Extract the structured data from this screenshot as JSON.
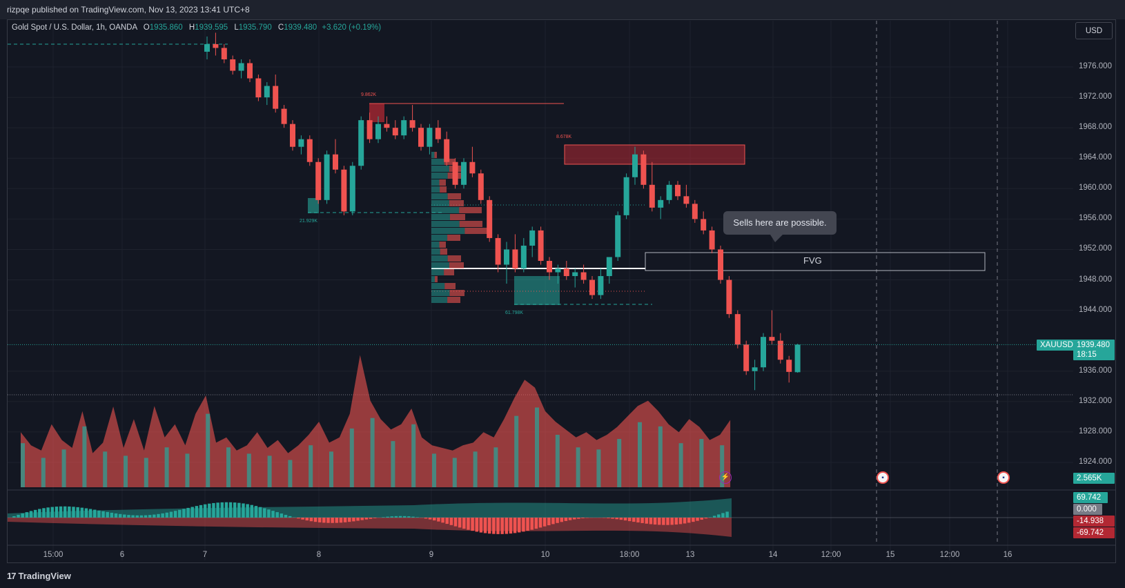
{
  "header": {
    "publish_line": "rizpqe published on TradingView.com, Nov 13, 2023 13:41 UTC+8"
  },
  "legend": {
    "symbol": "Gold Spot / U.S. Dollar, 1h, OANDA",
    "o_label": "O",
    "o": "1935.860",
    "h_label": "H",
    "h": "1939.595",
    "l_label": "L",
    "l": "1935.790",
    "c_label": "C",
    "c": "1939.480",
    "change": "+3.620 (+0.19%)"
  },
  "currency_button": "USD",
  "price_axis": [
    "1976.000",
    "1972.000",
    "1968.000",
    "1964.000",
    "1960.000",
    "1956.000",
    "1952.000",
    "1948.000",
    "1944.000",
    "1936.000",
    "1932.000",
    "1928.000",
    "1924.000"
  ],
  "time_axis": [
    "15:00",
    "6",
    "7",
    "8",
    "9",
    "10",
    "18:00",
    "13",
    "14",
    "12:00",
    "15",
    "12:00",
    "16"
  ],
  "last_price": {
    "symbol": "XAUUSD",
    "price": "1939.480",
    "countdown": "18:15"
  },
  "volume_badge": "2.565K",
  "oscillator_badges": {
    "upper": "69.742",
    "zero": "0.000",
    "current": "-14.938",
    "lower": "-69.742"
  },
  "annotations": {
    "tooltip": "Sells here are possible.",
    "fvg": "FVG",
    "zone_labels": [
      "9.862K",
      "8.678K",
      "21.929K",
      "61.798K"
    ]
  },
  "footer": {
    "logo_text": "TradingView"
  },
  "colors": {
    "bull": "#26a69a",
    "bear": "#ef5350",
    "bg": "#131722",
    "grid": "#1e222d"
  },
  "chart_data": {
    "type": "candlestick",
    "symbol": "XAUUSD",
    "timeframe": "1h",
    "ylim": [
      1921,
      1981
    ],
    "series": [
      {
        "name": "XAUUSD",
        "ohlc": [
          [
            1978.0,
            1980.0,
            1977.0,
            1979.0
          ],
          [
            1979.0,
            1980.5,
            1977.5,
            1978.5
          ],
          [
            1978.5,
            1979.0,
            1976.5,
            1977.0
          ],
          [
            1977.0,
            1977.5,
            1975.0,
            1975.5
          ],
          [
            1975.5,
            1977.0,
            1974.5,
            1976.5
          ],
          [
            1976.5,
            1977.0,
            1974.0,
            1974.5
          ],
          [
            1974.5,
            1975.0,
            1971.5,
            1972.0
          ],
          [
            1972.0,
            1974.0,
            1971.0,
            1973.5
          ],
          [
            1973.5,
            1975.0,
            1970.0,
            1970.5
          ],
          [
            1970.5,
            1971.0,
            1968.0,
            1968.5
          ],
          [
            1968.5,
            1969.0,
            1965.0,
            1965.5
          ],
          [
            1965.5,
            1967.0,
            1964.5,
            1966.5
          ],
          [
            1966.5,
            1967.0,
            1963.0,
            1963.5
          ],
          [
            1963.5,
            1964.0,
            1958.0,
            1958.5
          ],
          [
            1958.5,
            1965.0,
            1958.0,
            1964.5
          ],
          [
            1964.5,
            1966.5,
            1962.0,
            1962.5
          ],
          [
            1962.5,
            1963.0,
            1956.5,
            1957.0
          ],
          [
            1957.0,
            1963.5,
            1956.5,
            1963.0
          ],
          [
            1963.0,
            1969.5,
            1962.5,
            1969.0
          ],
          [
            1969.0,
            1970.0,
            1966.0,
            1966.5
          ],
          [
            1966.5,
            1969.5,
            1966.0,
            1968.5
          ],
          [
            1968.5,
            1969.5,
            1967.5,
            1968.0
          ],
          [
            1968.0,
            1969.0,
            1966.5,
            1967.0
          ],
          [
            1967.0,
            1969.5,
            1966.5,
            1969.0
          ],
          [
            1969.0,
            1971.0,
            1967.5,
            1968.0
          ],
          [
            1968.0,
            1968.5,
            1965.0,
            1965.5
          ],
          [
            1965.5,
            1968.5,
            1964.5,
            1968.0
          ],
          [
            1968.0,
            1969.0,
            1966.0,
            1966.5
          ],
          [
            1966.5,
            1967.5,
            1963.0,
            1963.5
          ],
          [
            1963.5,
            1964.0,
            1960.0,
            1960.5
          ],
          [
            1960.5,
            1964.0,
            1960.0,
            1963.5
          ],
          [
            1963.5,
            1965.5,
            1961.5,
            1962.0
          ],
          [
            1962.0,
            1962.5,
            1958.0,
            1958.5
          ],
          [
            1958.5,
            1959.0,
            1953.0,
            1953.5
          ],
          [
            1953.5,
            1954.0,
            1949.0,
            1950.0
          ],
          [
            1950.0,
            1953.0,
            1947.5,
            1952.0
          ],
          [
            1952.0,
            1954.0,
            1949.0,
            1949.5
          ],
          [
            1949.5,
            1953.5,
            1949.0,
            1952.5
          ],
          [
            1952.5,
            1955.0,
            1951.0,
            1954.5
          ],
          [
            1954.5,
            1955.0,
            1950.0,
            1950.5
          ],
          [
            1950.5,
            1951.0,
            1948.0,
            1949.0
          ],
          [
            1949.0,
            1950.0,
            1947.5,
            1949.5
          ],
          [
            1949.5,
            1950.5,
            1948.0,
            1948.5
          ],
          [
            1948.5,
            1949.5,
            1947.0,
            1949.0
          ],
          [
            1949.0,
            1950.0,
            1947.5,
            1948.0
          ],
          [
            1948.0,
            1948.5,
            1945.5,
            1946.0
          ],
          [
            1946.0,
            1949.5,
            1945.5,
            1948.5
          ],
          [
            1948.5,
            1951.0,
            1947.5,
            1951.0
          ],
          [
            1951.0,
            1957.0,
            1950.5,
            1956.5
          ],
          [
            1956.5,
            1962.0,
            1956.0,
            1961.5
          ],
          [
            1961.5,
            1965.5,
            1960.5,
            1964.5
          ],
          [
            1964.5,
            1965.0,
            1960.0,
            1960.5
          ],
          [
            1960.5,
            1963.5,
            1957.0,
            1957.5
          ],
          [
            1957.5,
            1959.0,
            1956.0,
            1958.5
          ],
          [
            1958.5,
            1961.0,
            1958.0,
            1960.5
          ],
          [
            1960.5,
            1961.0,
            1958.5,
            1959.0
          ],
          [
            1959.0,
            1960.5,
            1957.5,
            1958.0
          ],
          [
            1958.0,
            1958.5,
            1955.5,
            1956.0
          ],
          [
            1956.0,
            1957.0,
            1954.0,
            1954.5
          ],
          [
            1954.5,
            1955.0,
            1951.5,
            1952.0
          ],
          [
            1952.0,
            1952.5,
            1947.5,
            1948.0
          ],
          [
            1948.0,
            1948.5,
            1943.0,
            1943.5
          ],
          [
            1943.5,
            1944.0,
            1939.0,
            1939.5
          ],
          [
            1939.5,
            1940.0,
            1935.5,
            1936.0
          ],
          [
            1936.0,
            1937.5,
            1933.5,
            1936.5
          ],
          [
            1936.5,
            1941.0,
            1936.0,
            1940.5
          ],
          [
            1940.5,
            1944.0,
            1939.5,
            1940.0
          ],
          [
            1940.0,
            1941.0,
            1937.0,
            1937.5
          ],
          [
            1937.5,
            1938.0,
            1934.5,
            1935.9
          ],
          [
            1935.86,
            1939.595,
            1935.79,
            1939.48
          ]
        ]
      }
    ],
    "volume": [
      2.1,
      1.6,
      1.4,
      2.4,
      1.8,
      1.5,
      2.9,
      1.3,
      1.7,
      2.2,
      1.5,
      2.6,
      1.4,
      3.1,
      1.9,
      2.4,
      1.6,
      2.8,
      3.5,
      1.7,
      1.9,
      1.4,
      1.6,
      2.1,
      1.5,
      1.8,
      1.3,
      1.6,
      2.0,
      2.5,
      1.7,
      1.9,
      2.8,
      3.6,
      3.3,
      2.6,
      2.2,
      2.4,
      3.0,
      1.9,
      1.6,
      1.5,
      1.4,
      1.6,
      1.7,
      2.1,
      1.9,
      2.6,
      3.4,
      4.1,
      3.8,
      2.9,
      2.5,
      2.2,
      1.9,
      2.1,
      1.8,
      2.0,
      2.3,
      2.7,
      3.1,
      3.3,
      2.9,
      2.4,
      2.1,
      2.6,
      2.3,
      1.8,
      2.0,
      2.565
    ],
    "volume_unit": "K"
  }
}
